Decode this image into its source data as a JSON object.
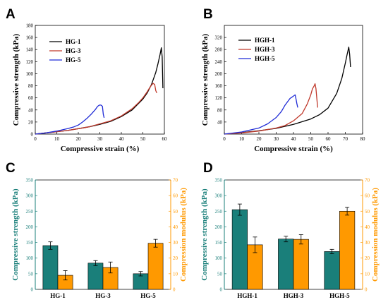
{
  "chart_data": [
    {
      "panel": "A",
      "type": "line",
      "xlabel": "Compressive strain (%)",
      "ylabel": "Compressive strength (kPa)",
      "xlim": [
        0,
        60
      ],
      "ylim": [
        0,
        180
      ],
      "xticks": [
        0,
        10,
        20,
        30,
        40,
        50,
        60
      ],
      "yticks": [
        0,
        20,
        40,
        60,
        80,
        100,
        120,
        140,
        160,
        180
      ],
      "legend_position": "top-left",
      "series": [
        {
          "name": "HG-1",
          "color": "#000000",
          "x": [
            0,
            5,
            10,
            15,
            20,
            25,
            30,
            35,
            40,
            45,
            50,
            52,
            54,
            56,
            57,
            58,
            58.6,
            59,
            59.3
          ],
          "y": [
            0,
            2,
            4,
            6,
            9,
            12,
            16,
            21,
            29,
            40,
            58,
            68,
            82,
            102,
            116,
            132,
            143,
            128,
            76
          ]
        },
        {
          "name": "HG-3",
          "color": "#c0392b",
          "x": [
            0,
            5,
            10,
            15,
            20,
            25,
            30,
            35,
            40,
            45,
            48,
            50,
            52,
            53,
            54,
            54.8,
            55.5,
            56,
            56.5
          ],
          "y": [
            0,
            2,
            4,
            6,
            9,
            12,
            17,
            22,
            30,
            42,
            52,
            60,
            70,
            76,
            81,
            84,
            82,
            72,
            68
          ]
        },
        {
          "name": "HG-5",
          "color": "#1f2bd6",
          "x": [
            0,
            5,
            10,
            15,
            18,
            20,
            22,
            24,
            26,
            27,
            28,
            29,
            29.8,
            30.5,
            31.2,
            31.6,
            32
          ],
          "y": [
            0,
            2,
            5,
            9,
            12,
            15,
            20,
            26,
            33,
            37,
            41,
            46,
            48,
            48,
            46,
            33,
            27
          ]
        }
      ]
    },
    {
      "panel": "B",
      "type": "line",
      "xlabel": "Compressive strain (%)",
      "ylabel": "Compressive strength (kPa)",
      "xlim": [
        0,
        80
      ],
      "ylim": [
        0,
        360
      ],
      "xticks": [
        0,
        10,
        20,
        30,
        40,
        50,
        60,
        70,
        80
      ],
      "yticks": [
        40,
        80,
        120,
        160,
        200,
        240,
        280,
        320
      ],
      "legend_position": "top-left",
      "series": [
        {
          "name": "HGH-1",
          "color": "#000000",
          "x": [
            0,
            10,
            20,
            30,
            40,
            50,
            55,
            60,
            65,
            68,
            70,
            71,
            72,
            72.5,
            73
          ],
          "y": [
            0,
            5,
            11,
            19,
            32,
            50,
            64,
            86,
            135,
            185,
            235,
            262,
            288,
            265,
            222
          ]
        },
        {
          "name": "HGH-3",
          "color": "#c0392b",
          "x": [
            0,
            10,
            20,
            30,
            35,
            40,
            45,
            48,
            50,
            51,
            52,
            52.5,
            53,
            53.5,
            54
          ],
          "y": [
            0,
            4,
            10,
            20,
            28,
            44,
            68,
            100,
            130,
            150,
            160,
            167,
            150,
            118,
            88
          ]
        },
        {
          "name": "HGH-5",
          "color": "#1f2bd6",
          "x": [
            0,
            10,
            20,
            25,
            30,
            33,
            35,
            37,
            38,
            39,
            40,
            41,
            41.5,
            42,
            42.5
          ],
          "y": [
            0,
            7,
            20,
            34,
            55,
            75,
            95,
            110,
            118,
            122,
            126,
            130,
            115,
            100,
            88
          ]
        }
      ]
    },
    {
      "panel": "C",
      "type": "bar",
      "categories": [
        "HG-1",
        "HG-3",
        "HG-5"
      ],
      "ylabel": "Compressive strength (kPa)",
      "y2label": "Compression modulus (kPa)",
      "ylim": [
        0,
        350
      ],
      "y2lim": [
        0,
        70
      ],
      "yticks": [
        0,
        50,
        100,
        150,
        200,
        250,
        300,
        350
      ],
      "y2ticks": [
        0,
        10,
        20,
        30,
        40,
        50,
        60,
        70
      ],
      "series": [
        {
          "axis": "left",
          "color": "#1a7f7a",
          "values": [
            140,
            84,
            50
          ],
          "errors": [
            12,
            8,
            7
          ]
        },
        {
          "axis": "right",
          "color": "#ff9900",
          "values": [
            9,
            14,
            29.5
          ],
          "errors": [
            3,
            3.5,
            2.5
          ]
        }
      ]
    },
    {
      "panel": "D",
      "type": "bar",
      "categories": [
        "HGH-1",
        "HGH-3",
        "HGH-5"
      ],
      "ylabel": "Compressive strength (kPa)",
      "y2label": "Compression modulus (kPa)",
      "ylim": [
        0,
        350
      ],
      "y2lim": [
        0,
        70
      ],
      "yticks": [
        0,
        50,
        100,
        150,
        200,
        250,
        300,
        350
      ],
      "y2ticks": [
        0,
        10,
        20,
        30,
        40,
        50,
        60,
        70
      ],
      "series": [
        {
          "axis": "left",
          "color": "#1a7f7a",
          "values": [
            255,
            161,
            121
          ],
          "errors": [
            18,
            9,
            7
          ]
        },
        {
          "axis": "right",
          "color": "#ff9900",
          "values": [
            28.5,
            32,
            50
          ],
          "errors": [
            5,
            3,
            2.5
          ]
        }
      ]
    }
  ]
}
